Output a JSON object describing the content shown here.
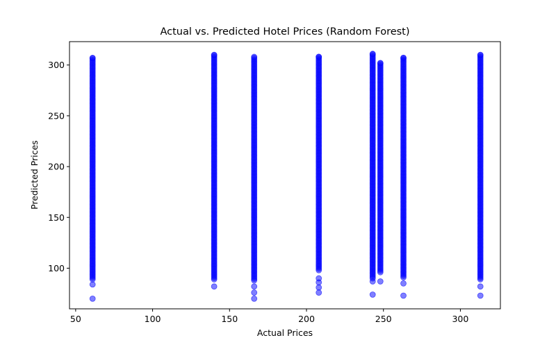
{
  "chart_data": {
    "type": "scatter",
    "title": "Actual vs. Predicted Hotel Prices (Random Forest)",
    "xlabel": "Actual Prices",
    "ylabel": "Predicted Prices",
    "xlim": [
      46,
      326
    ],
    "ylim": [
      60,
      323
    ],
    "xticks": [
      50,
      100,
      150,
      200,
      250,
      300
    ],
    "yticks": [
      100,
      150,
      200,
      250,
      300
    ],
    "grid": false,
    "marker_color": "#0000ff",
    "marker_alpha": 0.5,
    "columns": [
      {
        "x": 61,
        "y_min": 89,
        "y_max": 307,
        "outliers": [
          84,
          70
        ]
      },
      {
        "x": 140,
        "y_min": 89,
        "y_max": 310,
        "outliers": [
          82
        ]
      },
      {
        "x": 166,
        "y_min": 88,
        "y_max": 308,
        "outliers": [
          82,
          76,
          70
        ]
      },
      {
        "x": 208,
        "y_min": 98,
        "y_max": 308,
        "outliers": [
          90,
          86,
          81,
          76
        ]
      },
      {
        "x": 243,
        "y_min": 90,
        "y_max": 311,
        "outliers": [
          87,
          74
        ]
      },
      {
        "x": 248,
        "y_min": 96,
        "y_max": 302,
        "outliers": [
          87
        ]
      },
      {
        "x": 263,
        "y_min": 91,
        "y_max": 307,
        "outliers": [
          85,
          73
        ]
      },
      {
        "x": 313,
        "y_min": 89,
        "y_max": 310,
        "outliers": [
          82,
          73
        ]
      }
    ]
  }
}
